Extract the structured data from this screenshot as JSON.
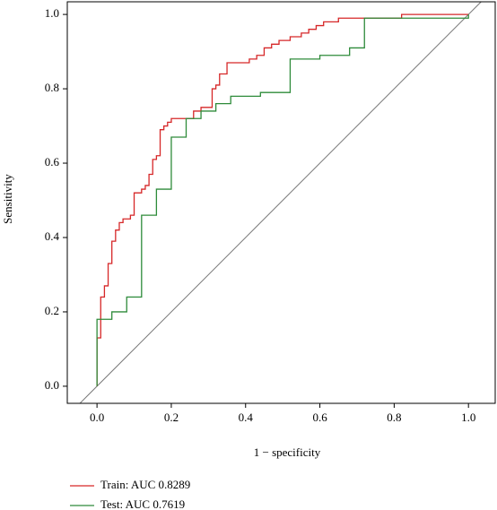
{
  "chart_data": {
    "type": "line",
    "x_label": "1 − specificity",
    "y_label": "Sensitivity",
    "xlim": [
      -0.08,
      1.072
    ],
    "ylim": [
      -0.046,
      1.034
    ],
    "xticks": [
      {
        "value": 0,
        "label": "0.0"
      },
      0.2,
      0.4,
      0.6,
      0.8,
      {
        "value": 1,
        "label": "1.0"
      }
    ],
    "yticks": [
      {
        "value": 0,
        "label": "0.0"
      },
      0.2,
      0.4,
      0.6,
      0.8,
      {
        "value": 1,
        "label": "1.0"
      }
    ],
    "reference_line": true,
    "series": [
      {
        "name": "Train: AUC 0.8289",
        "color": "#d62728",
        "x": [
          0,
          0,
          0.01,
          0.01,
          0.02,
          0.02,
          0.03,
          0.03,
          0.04,
          0.04,
          0.05,
          0.05,
          0.06,
          0.06,
          0.07,
          0.07,
          0.09,
          0.09,
          0.1,
          0.1,
          0.12,
          0.12,
          0.13,
          0.13,
          0.14,
          0.14,
          0.15,
          0.15,
          0.16,
          0.16,
          0.17,
          0.17,
          0.18,
          0.18,
          0.19,
          0.19,
          0.2,
          0.2,
          0.26,
          0.26,
          0.28,
          0.28,
          0.31,
          0.31,
          0.32,
          0.32,
          0.33,
          0.33,
          0.35,
          0.35,
          0.41,
          0.41,
          0.43,
          0.43,
          0.45,
          0.45,
          0.47,
          0.47,
          0.49,
          0.49,
          0.52,
          0.52,
          0.55,
          0.55,
          0.57,
          0.57,
          0.59,
          0.59,
          0.61,
          0.61,
          0.65,
          0.65,
          0.82,
          0.82,
          1.0
        ],
        "values": [
          0,
          0.13,
          0.13,
          0.24,
          0.24,
          0.27,
          0.27,
          0.33,
          0.33,
          0.39,
          0.39,
          0.42,
          0.42,
          0.44,
          0.44,
          0.45,
          0.45,
          0.46,
          0.46,
          0.52,
          0.52,
          0.53,
          0.53,
          0.54,
          0.54,
          0.57,
          0.57,
          0.61,
          0.61,
          0.62,
          0.62,
          0.69,
          0.69,
          0.7,
          0.7,
          0.71,
          0.71,
          0.72,
          0.72,
          0.74,
          0.74,
          0.75,
          0.75,
          0.8,
          0.8,
          0.81,
          0.81,
          0.84,
          0.84,
          0.87,
          0.87,
          0.88,
          0.88,
          0.89,
          0.89,
          0.91,
          0.91,
          0.92,
          0.92,
          0.93,
          0.93,
          0.94,
          0.94,
          0.95,
          0.95,
          0.96,
          0.96,
          0.97,
          0.97,
          0.98,
          0.98,
          0.99,
          0.99,
          1.0,
          1.0
        ]
      },
      {
        "name": "Test: AUC 0.7619",
        "color": "#2e8b3a",
        "x": [
          0,
          0,
          0.04,
          0.04,
          0.08,
          0.08,
          0.12,
          0.12,
          0.16,
          0.16,
          0.2,
          0.2,
          0.24,
          0.24,
          0.28,
          0.28,
          0.32,
          0.32,
          0.36,
          0.36,
          0.44,
          0.44,
          0.52,
          0.52,
          0.6,
          0.6,
          0.68,
          0.68,
          0.72,
          0.72,
          1.0,
          1.0
        ],
        "values": [
          0,
          0.18,
          0.18,
          0.2,
          0.2,
          0.24,
          0.24,
          0.46,
          0.46,
          0.53,
          0.53,
          0.67,
          0.67,
          0.72,
          0.72,
          0.74,
          0.74,
          0.76,
          0.76,
          0.78,
          0.78,
          0.79,
          0.79,
          0.88,
          0.88,
          0.89,
          0.89,
          0.91,
          0.91,
          0.99,
          0.99,
          1.0
        ]
      }
    ]
  }
}
